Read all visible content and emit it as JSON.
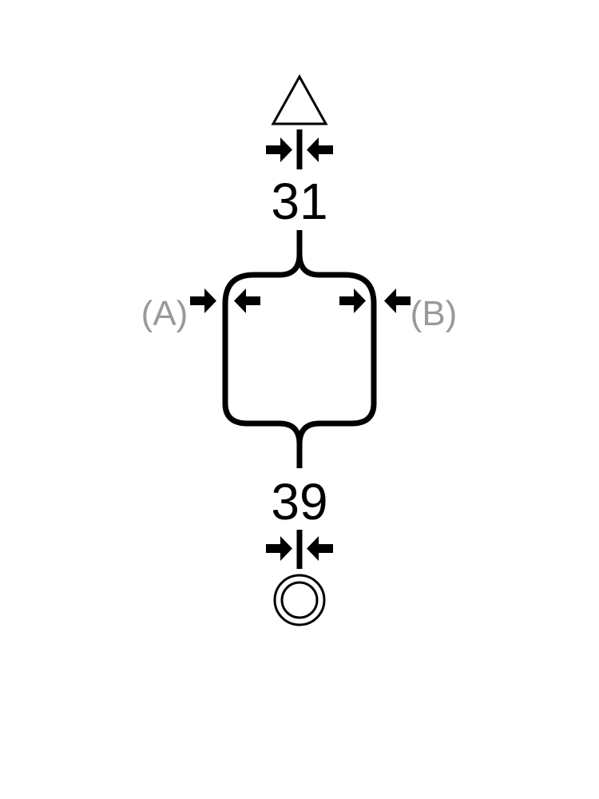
{
  "diagram": {
    "top_symbol": "triangle-icon",
    "bottom_symbol": "double-circle-icon",
    "top_number": "31",
    "bottom_number": "39",
    "left_label": "(A)",
    "right_label": "(B)",
    "colors": {
      "line": "#000000",
      "side_label": "#999999",
      "background": "#ffffff"
    }
  }
}
